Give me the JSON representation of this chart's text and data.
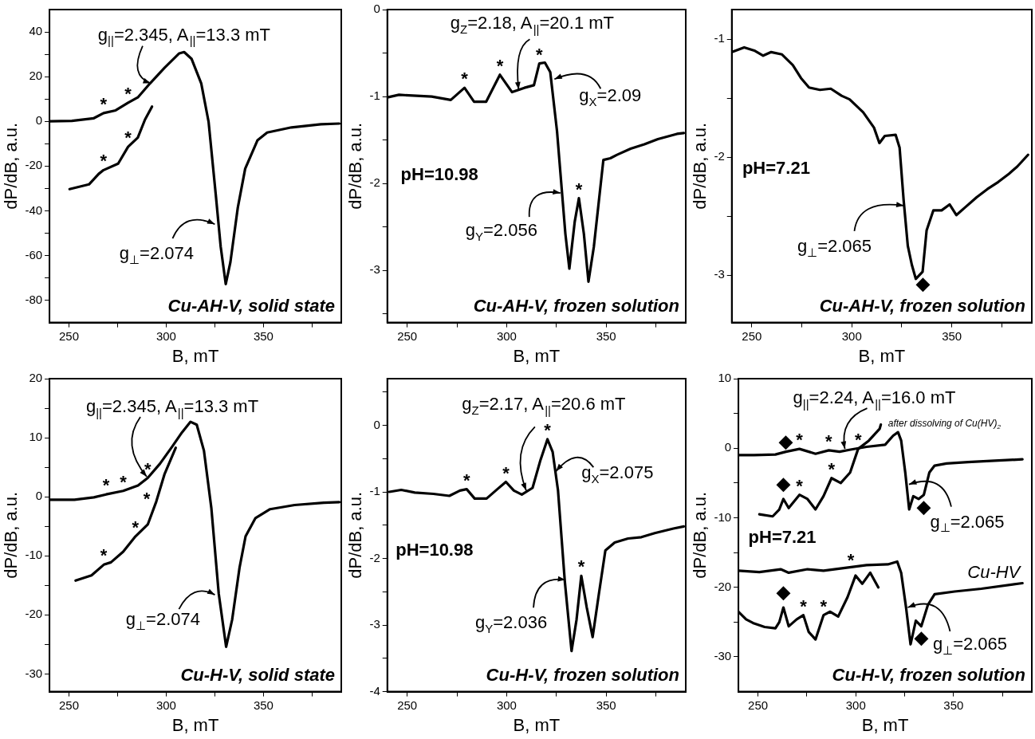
{
  "chart_data": [
    {
      "type": "line",
      "title": "Cu-AH-V, solid state",
      "xlabel": "B, mT",
      "ylabel": "dP/dB, a.u.",
      "xlim": [
        240,
        390
      ],
      "xticks": [
        250,
        {
          "value": 275,
          "label": null
        },
        300,
        {
          "value": 325,
          "label": null
        },
        350,
        {
          "value": 375,
          "label": null
        }
      ],
      "ylim": [
        -90,
        50
      ],
      "yticks": [
        -80,
        {
          "value": -70,
          "label": null
        },
        -60,
        {
          "value": -50,
          "label": null
        },
        -40,
        {
          "value": -30,
          "label": null
        },
        -20,
        {
          "value": -10,
          "label": null
        },
        0,
        {
          "value": 10,
          "label": null
        },
        20,
        {
          "value": 30,
          "label": null
        },
        40
      ],
      "grid": false,
      "legend": false,
      "marker": "none",
      "series": [
        {
          "color": "#000000",
          "x": [
            240.2,
            251.5,
            262.8,
            267.8,
            274,
            280.4,
            285.4,
            291.7,
            299.2,
            306.7,
            309.2,
            313,
            318,
            321.8,
            325.5,
            328,
            330.6,
            333,
            336.8,
            340.6,
            346.9,
            351.9,
            364.4,
            379.5,
            389
          ],
          "values": [
            0,
            0.2,
            1.4,
            3.7,
            4.9,
            8.3,
            10.7,
            17,
            24,
            30.4,
            31,
            28,
            17,
            -0.3,
            -33,
            -56,
            -72.8,
            -63,
            -38.6,
            -21.2,
            -8.5,
            -5,
            -2.7,
            -1.3,
            -1
          ]
        },
        {
          "color": "#000000",
          "x": [
            250.3,
            260.3,
            265.3,
            267.8,
            275.3,
            280.4,
            285.4,
            289.1,
            292.7
          ],
          "values": [
            -30.3,
            -28.2,
            -23.5,
            -21.8,
            -18.9,
            -11.4,
            -7.3,
            0.8,
            6.6
          ]
        }
      ],
      "annotations": [
        {
          "text": "g$_{||}$=2.345, A$_{||}$=13.3 mT",
          "x": 292,
          "y": 17
        },
        {
          "text": "g$_{⊥}$=2.074",
          "x": 325,
          "y": -46
        },
        {
          "text": "*",
          "x": 267.8,
          "y": 3.7
        },
        {
          "text": "*",
          "x": 280.4,
          "y": 8.3
        },
        {
          "text": "*",
          "x": 267.8,
          "y": -21.8
        },
        {
          "text": "*",
          "x": 280.4,
          "y": -11.4
        }
      ]
    },
    {
      "type": "line",
      "title": "Cu-AH-V, frozen solution",
      "xlabel": "B, mT",
      "ylabel": "dP/dB, a.u.",
      "xlim": [
        240,
        390
      ],
      "xticks": [
        250,
        {
          "value": 275,
          "label": null
        },
        300,
        {
          "value": 325,
          "label": null
        },
        350,
        {
          "value": 375,
          "label": null
        }
      ],
      "ylim": [
        -3.6,
        0
      ],
      "yticks": [
        {
          "value": -3.5,
          "label": null
        },
        -3,
        {
          "value": -2.5,
          "label": null
        },
        -2,
        {
          "value": -1.5,
          "label": null
        },
        -1,
        {
          "value": -0.5,
          "label": null
        },
        0
      ],
      "grid": false,
      "legend": false,
      "marker": "none",
      "series": [
        {
          "color": "#000000",
          "x": [
            240.1,
            245.9,
            252.7,
            262.3,
            271.9,
            278.8,
            283.6,
            289.7,
            296.6,
            302.7,
            308.9,
            313.7,
            316.4,
            319.2,
            321.9,
            325.3,
            329.5,
            331.5,
            334.2,
            336.3,
            338.8,
            341.1,
            343.8,
            348.6,
            352.1,
            355.5,
            362.3,
            369.2,
            376,
            385.6,
            389
          ],
          "values": [
            -1.01,
            -0.98,
            -0.99,
            -1,
            -1.04,
            -0.9,
            -1.06,
            -1.06,
            -0.75,
            -0.95,
            -0.9,
            -0.87,
            -0.62,
            -0.61,
            -0.72,
            -1.4,
            -2.58,
            -2.98,
            -2.44,
            -2.17,
            -2.58,
            -3.13,
            -2.73,
            -1.73,
            -1.71,
            -1.67,
            -1.6,
            -1.55,
            -1.49,
            -1.43,
            -1.42
          ]
        }
      ],
      "annotations": [
        {
          "text": "g$_{Z}$=2.18, A$_{||}$=20.1 mT",
          "x": 306,
          "y": -0.92
        },
        {
          "text": "g$_{X}$=2.09",
          "x": 324,
          "y": -0.8
        },
        {
          "text": "g$_{Y}$=2.056",
          "x": 327,
          "y": -2.11
        },
        "pH=10.98",
        {
          "text": "*",
          "x": 278.8,
          "y": -0.9
        },
        {
          "text": "*",
          "x": 296.6,
          "y": -0.75
        },
        {
          "text": "*",
          "x": 316.4,
          "y": -0.62
        },
        {
          "text": "*",
          "x": 336.3,
          "y": -2.17
        }
      ]
    },
    {
      "type": "line",
      "title": "Cu-AH-V, frozen solution",
      "xlabel": "B, mT",
      "ylabel": "dP/dB, a.u.",
      "xlim": [
        240,
        390
      ],
      "xticks": [
        250,
        {
          "value": 275,
          "label": null
        },
        300,
        {
          "value": 325,
          "label": null
        },
        350,
        {
          "value": 375,
          "label": null
        }
      ],
      "ylim": [
        -3.4,
        -0.75
      ],
      "yticks": [
        -3,
        {
          "value": -2.5,
          "label": null
        },
        -2,
        {
          "value": -1.5,
          "label": null
        },
        -1
      ],
      "grid": false,
      "legend": false,
      "marker": "none",
      "series": [
        {
          "color": "#000000",
          "x": [
            240.1,
            246.2,
            251.6,
            255.7,
            259.7,
            265.1,
            270.5,
            274.6,
            278.6,
            284.1,
            289.5,
            294.9,
            298.9,
            305.7,
            311.1,
            313.8,
            316.5,
            321.9,
            323.9,
            325.9,
            328,
            330,
            332,
            335.4,
            337.4,
            340.8,
            344.9,
            348.9,
            352.3,
            357,
            362.4,
            367.8,
            373.2,
            378.6,
            382.7,
            388.1
          ],
          "values": [
            -1.11,
            -1.07,
            -1.1,
            -1.14,
            -1.11,
            -1.13,
            -1.22,
            -1.33,
            -1.41,
            -1.43,
            -1.42,
            -1.48,
            -1.51,
            -1.62,
            -1.75,
            -1.88,
            -1.82,
            -1.81,
            -1.92,
            -2.36,
            -2.75,
            -2.91,
            -3.03,
            -2.97,
            -2.62,
            -2.45,
            -2.45,
            -2.4,
            -2.49,
            -2.42,
            -2.34,
            -2.27,
            -2.21,
            -2.14,
            -2.08,
            -1.98
          ]
        }
      ],
      "annotations": [
        {
          "text": "g$_{⊥}$=2.065",
          "x": 326,
          "y": -2.41
        },
        "pH=7.21",
        {
          "text": "◆",
          "x": 335.4,
          "y": -2.97
        }
      ]
    },
    {
      "type": "line",
      "title": "Cu-H-V, solid state",
      "xlabel": "B, mT",
      "ylabel": "dP/dB, a.u.",
      "xlim": [
        240,
        390
      ],
      "xticks": [
        250,
        {
          "value": 275,
          "label": null
        },
        300,
        {
          "value": 325,
          "label": null
        },
        350,
        {
          "value": 375,
          "label": null
        }
      ],
      "ylim": [
        -33,
        20
      ],
      "yticks": [
        -30,
        {
          "value": -25,
          "label": null
        },
        -20,
        {
          "value": -15,
          "label": null
        },
        -10,
        {
          "value": -5,
          "label": null
        },
        0,
        {
          "value": 5,
          "label": null
        },
        10,
        {
          "value": 15,
          "label": null
        },
        20
      ],
      "grid": false,
      "legend": false,
      "marker": "none",
      "series": [
        {
          "color": "#000000",
          "x": [
            240.2,
            252.8,
            262.8,
            269.1,
            277.9,
            285.5,
            290.5,
            296.8,
            303.1,
            308.1,
            312.5,
            315.7,
            319.4,
            323.2,
            327,
            330.8,
            333.9,
            337.7,
            340.8,
            345.9,
            353.4,
            366,
            381,
            389
          ],
          "values": [
            -0.5,
            -0.5,
            -0.1,
            0.4,
            1,
            1.9,
            3.2,
            5.6,
            8.5,
            10.9,
            12.7,
            12.2,
            7.8,
            -1.9,
            -16.4,
            -25.4,
            -20.8,
            -12,
            -6.7,
            -3.6,
            -2.1,
            -1.4,
            -1,
            -0.9
          ]
        },
        {
          "color": "#000000",
          "x": [
            253.4,
            261.6,
            267.9,
            271.6,
            277.9,
            284.2,
            290.5,
            294.9,
            299.2,
            304.9
          ],
          "values": [
            -14.2,
            -13.3,
            -11.5,
            -11.1,
            -9.3,
            -6.7,
            -4.7,
            -0.8,
            3.9,
            8.3
          ]
        }
      ],
      "annotations": [
        {
          "text": "g$_{||}$=2.345, A$_{||}$=13.3 mT",
          "x": 290,
          "y": 3.4
        },
        {
          "text": "g$_{⊥}$=2.074",
          "x": 325,
          "y": -16.6
        },
        {
          "text": "*",
          "x": 269.1,
          "y": 0.4
        },
        {
          "text": "*",
          "x": 277.9,
          "y": 1
        },
        {
          "text": "*",
          "x": 290.5,
          "y": 3.2
        },
        {
          "text": "*",
          "x": 294.9,
          "y": -0.8
        },
        {
          "text": "*",
          "x": 284.2,
          "y": -6.7
        },
        {
          "text": "*",
          "x": 267.9,
          "y": -11.5
        }
      ]
    },
    {
      "type": "line",
      "title": "Cu-H-V, frozen solution",
      "xlabel": "B, mT",
      "ylabel": "dP/dB, a.u.",
      "xlim": [
        240,
        390
      ],
      "xticks": [
        250,
        {
          "value": 275,
          "label": null
        },
        300,
        {
          "value": 325,
          "label": null
        },
        350,
        {
          "value": 375,
          "label": null
        }
      ],
      "ylim": [
        -4,
        0.7
      ],
      "yticks": [
        -4,
        {
          "value": -3.5,
          "label": null
        },
        -3,
        {
          "value": -2.5,
          "label": null
        },
        -2,
        {
          "value": -1.5,
          "label": null
        },
        -1,
        {
          "value": -0.5,
          "label": null
        },
        0,
        {
          "value": 0.5,
          "label": null
        }
      ],
      "grid": false,
      "legend": false,
      "marker": "none",
      "series": [
        {
          "color": "#000000",
          "x": [
            241,
            247,
            253.8,
            263.1,
            271.2,
            276.5,
            279.9,
            283.9,
            289.9,
            295.3,
            299.6,
            303.6,
            307.6,
            313,
            317,
            320.5,
            323.1,
            325.8,
            329.2,
            332.6,
            335.1,
            337.5,
            340.2,
            343.2,
            346.3,
            349.6,
            354.3,
            361,
            367.7,
            374.4,
            383.8,
            389
          ],
          "values": [
            -1,
            -0.97,
            -1.01,
            -1.03,
            -1.06,
            -0.98,
            -0.96,
            -1.1,
            -1.1,
            -0.96,
            -0.85,
            -0.98,
            -1.04,
            -0.94,
            -0.52,
            -0.21,
            -0.4,
            -0.98,
            -2.34,
            -3.39,
            -2.92,
            -2.26,
            -2.73,
            -3.18,
            -2.54,
            -1.88,
            -1.76,
            -1.7,
            -1.68,
            -1.62,
            -1.55,
            -1.52
          ]
        }
      ],
      "annotations": [
        {
          "text": "g$_{Z}$=2.17, A$_{||}$=20.6 mT",
          "x": 309.8,
          "y": -0.98
        },
        {
          "text": "g$_{X}$=2.075",
          "x": 324.8,
          "y": -0.69
        },
        {
          "text": "g$_{Y}$=2.036",
          "x": 329.5,
          "y": -2.32
        },
        "pH=10.98",
        {
          "text": "*",
          "x": 279.9,
          "y": -0.96
        },
        {
          "text": "*",
          "x": 299.6,
          "y": -0.85
        },
        {
          "text": "*",
          "x": 320.5,
          "y": -0.21
        },
        {
          "text": "*",
          "x": 337.5,
          "y": -2.26
        }
      ]
    },
    {
      "type": "line",
      "title": "Cu-H-V, frozen solution",
      "xlabel": "B, mT",
      "ylabel": "dP/dB, a.u.",
      "xlim": [
        240,
        390
      ],
      "xticks": [
        250,
        {
          "value": 275,
          "label": null
        },
        300,
        {
          "value": 325,
          "label": null
        },
        350,
        {
          "value": 375,
          "label": null
        }
      ],
      "ylim": [
        -35,
        10
      ],
      "yticks": [
        -30,
        {
          "value": -25,
          "label": null
        },
        -20,
        {
          "value": -15,
          "label": null
        },
        -10,
        {
          "value": -5,
          "label": null
        },
        0,
        {
          "value": 5,
          "label": null
        },
        10
      ],
      "grid": false,
      "legend": false,
      "marker": "none",
      "series": [
        {
          "color": "#000000",
          "x": [
            240,
            248,
            258.9,
            264.3,
            271.2,
            279.4,
            286.2,
            291.7,
            297.3,
            305.5,
            315,
            319.1,
            321.6,
            323.2,
            325.3,
            327.3,
            329.4,
            332.1,
            334.8,
            337.6,
            340.3,
            346.4,
            357.4,
            371,
            385.2
          ],
          "values": [
            -1,
            -1,
            -0.9,
            -0.5,
            -0.1,
            -0.8,
            -0.3,
            -0.5,
            -0.2,
            0.2,
            0.5,
            1.8,
            2.3,
            1.1,
            -3.5,
            -8.8,
            -6.9,
            -7.3,
            -6.7,
            -3.5,
            -2.5,
            -2.2,
            -2,
            -1.8,
            -1.6
          ]
        },
        {
          "color": "#000000",
          "x": [
            250.7,
            257.5,
            260.9,
            263,
            265.7,
            271.2,
            275.3,
            279.4,
            283.5,
            287.6,
            292.3,
            297.1,
            301.2,
            306.7,
            312.2,
            312.8
          ],
          "values": [
            -9.5,
            -9.8,
            -8.8,
            -7.3,
            -8.6,
            -6.7,
            -7.3,
            -8.8,
            -6.9,
            -4.3,
            -5,
            -3.5,
            -0.1,
            1.1,
            2.8,
            3.4
          ]
        },
        {
          "color": "#000000",
          "x": [
            240,
            250.7,
            261.6,
            265.7,
            275.3,
            283.5,
            294.5,
            305.5,
            316.4,
            321.2,
            323.2,
            325.7,
            328,
            330.7,
            333.5,
            336.9,
            340.3,
            350.5,
            364.2,
            385.2
          ],
          "values": [
            -17.6,
            -17.8,
            -17.4,
            -17.9,
            -17.4,
            -17.6,
            -17.2,
            -16.8,
            -16.7,
            -16.3,
            -17.9,
            -22.9,
            -28.2,
            -24.8,
            -25.6,
            -22.5,
            -21,
            -20.6,
            -20.2,
            -19.4
          ]
        },
        {
          "color": "#000000",
          "x": [
            240,
            243.9,
            248,
            253.4,
            258.9,
            260.9,
            263,
            265.7,
            269.8,
            273.2,
            275.9,
            279.4,
            283.5,
            286.9,
            291,
            295.8,
            299.9,
            303.3,
            307.4,
            311.5
          ],
          "values": [
            -23.5,
            -24.6,
            -25.2,
            -25.7,
            -25.9,
            -25,
            -22.9,
            -25.6,
            -24.6,
            -24,
            -26.4,
            -27.5,
            -24,
            -23.5,
            -24.2,
            -21.4,
            -18.3,
            -19.5,
            -17.9,
            -20
          ]
        }
      ],
      "annotations": [
        {
          "text": "g$_{||}$=2.24, A$_{||}$=16.0 mT",
          "x": 294.4,
          "y": -0.1
        },
        "after dissolving of Cu(HV)$_{2}$",
        {
          "text": "g$_{⊥}$=2.065",
          "x": 327.2,
          "y": -5.2
        },
        "pH=7.21",
        "Cu-HV",
        {
          "text": "g$_{⊥}$=2.065",
          "x": 326.6,
          "y": -22.9
        },
        {
          "text": "◆",
          "x": 264.3,
          "y": -0.5
        },
        {
          "text": "◆",
          "x": 263,
          "y": -7.3
        },
        {
          "text": "◆",
          "x": 334.8,
          "y": -6.7
        },
        {
          "text": "◆",
          "x": 263,
          "y": -22.9
        },
        {
          "text": "◆",
          "x": 333.5,
          "y": -25.6
        },
        {
          "text": "*",
          "x": 271.2,
          "y": -0.1
        },
        {
          "text": "*",
          "x": 286.2,
          "y": -0.3
        },
        {
          "text": "*",
          "x": 301.2,
          "y": -0.1
        },
        {
          "text": "*",
          "x": 271.2,
          "y": -6.7
        },
        {
          "text": "*",
          "x": 287.6,
          "y": -4.3
        },
        {
          "text": "*",
          "x": 299.9,
          "y": -18.3
        },
        {
          "text": "*",
          "x": 273.2,
          "y": -24
        },
        {
          "text": "*",
          "x": 283.5,
          "y": -24
        }
      ]
    }
  ]
}
